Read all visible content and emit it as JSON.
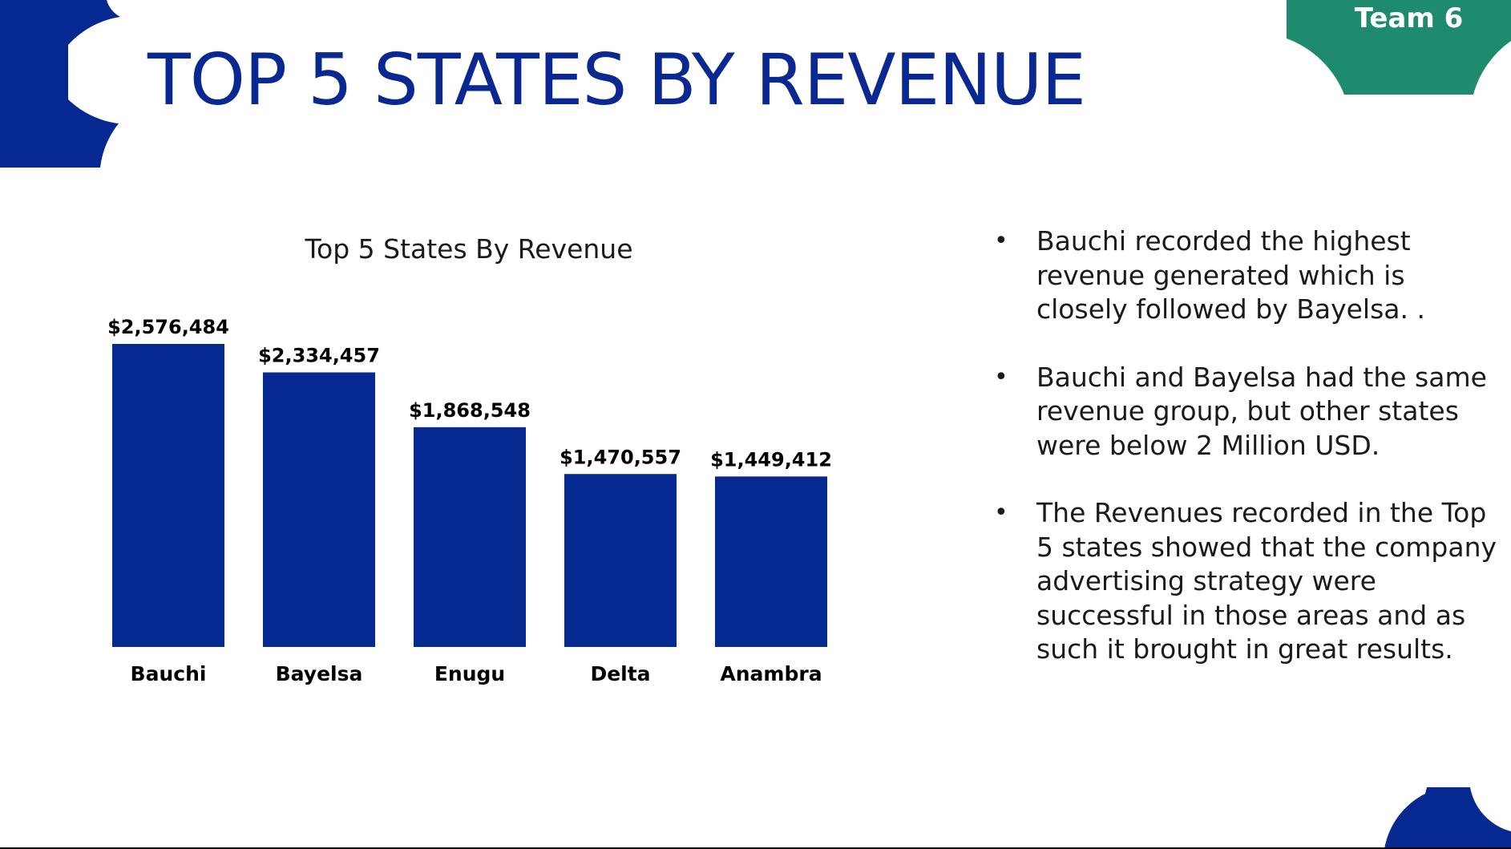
{
  "slide": {
    "title": "TOP 5 STATES BY REVENUE",
    "team_label": "Team 6"
  },
  "colors": {
    "brand_blue": "#062891",
    "team_green": "#1f8b6e",
    "text": "#1a1a1a"
  },
  "chart_data": {
    "type": "bar",
    "title": "Top 5 States By Revenue",
    "categories": [
      "Bauchi",
      "Bayelsa",
      "Enugu",
      "Delta",
      "Anambra"
    ],
    "values": [
      2576484,
      2334457,
      1868548,
      1470557,
      1449412
    ],
    "value_labels": [
      "$2,576,484",
      "$2,334,457",
      "$1,868,548",
      "$1,470,557",
      "$1,449,412"
    ],
    "xlabel": "",
    "ylabel": "",
    "grid": false,
    "legend": false,
    "bar_color": "#062891"
  },
  "bullets": [
    {
      "text": "Bauchi recorded the highest revenue generated which is closely followed by Bayelsa. ."
    },
    {
      "text": "Bauchi and Bayelsa had the same revenue group, but other states were below 2 Million USD."
    },
    {
      "text": "The Revenues recorded in the Top 5 states showed that the company advertising strategy were successful in those areas and as such it brought in great results."
    }
  ]
}
